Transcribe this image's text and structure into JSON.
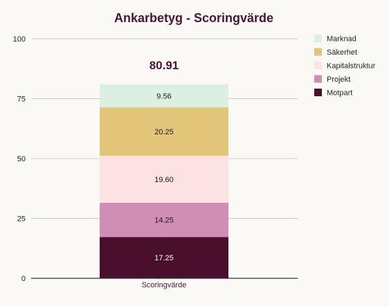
{
  "chart_data": {
    "type": "bar",
    "stacked": true,
    "title": "Ankarbetyg - Scoringvärde",
    "total_label": "80.91",
    "categories": [
      "Scoringvärde"
    ],
    "ylim": [
      0,
      100
    ],
    "yticks": [
      0,
      25,
      50,
      75,
      100
    ],
    "grid": true,
    "legend_position": "right",
    "series": [
      {
        "name": "Motpart",
        "values": [
          17.25
        ],
        "label": "17.25",
        "color": "#4a0f2c",
        "label_color": "#ffffff"
      },
      {
        "name": "Projekt",
        "values": [
          14.25
        ],
        "label": "14.25",
        "color": "#d08db6",
        "label_color": "#1a1a1a"
      },
      {
        "name": "Kapitalstruktur",
        "values": [
          19.6
        ],
        "label": "19.60",
        "color": "#fde2e4",
        "label_color": "#1a1a1a"
      },
      {
        "name": "Säkerhet",
        "values": [
          20.25
        ],
        "label": "20.25",
        "color": "#e3c57a",
        "label_color": "#1a1a1a"
      },
      {
        "name": "Marknad",
        "values": [
          9.56
        ],
        "label": "9.56",
        "color": "#dcefe3",
        "label_color": "#1a1a1a"
      }
    ],
    "legend_order": [
      "Marknad",
      "Säkerhet",
      "Kapitalstruktur",
      "Projekt",
      "Motpart"
    ],
    "colors": {
      "title": "#4a1535",
      "total": "#4a1535",
      "grid": "#c9c9c9",
      "axis": "#333333",
      "tick_text": "#222222",
      "category_text": "#4a1535",
      "background": "#fbf9f6"
    }
  }
}
